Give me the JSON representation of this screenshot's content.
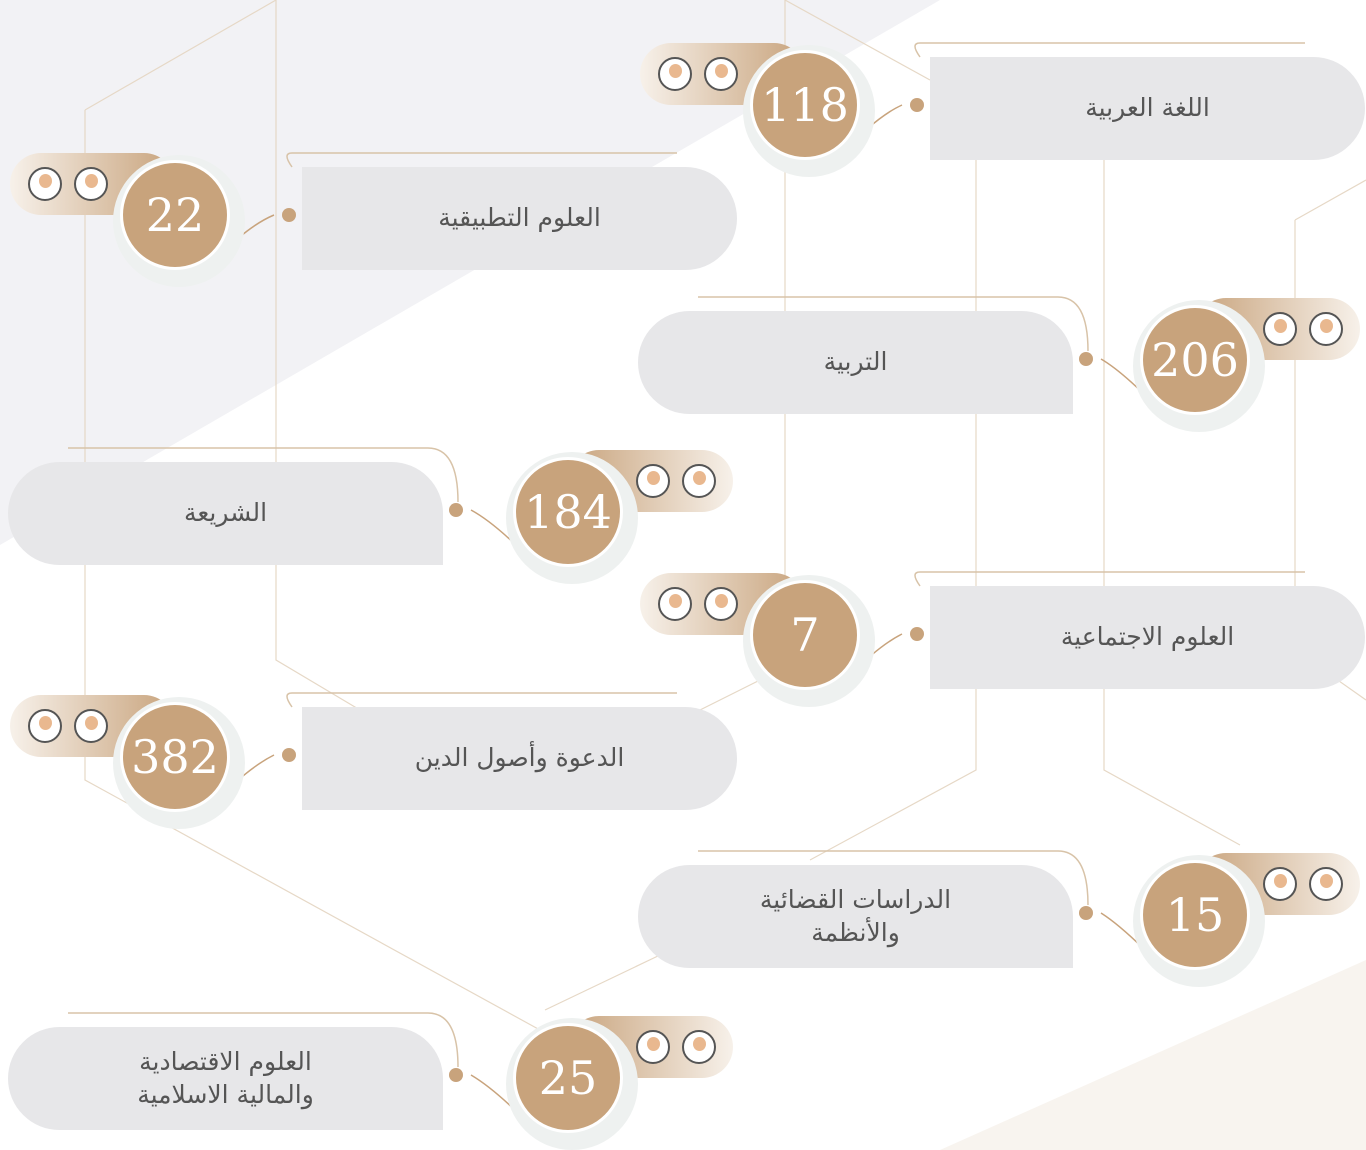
{
  "items": [
    {
      "label": "اللغة العربية",
      "count": 118
    },
    {
      "label": "العلوم التطبيقية",
      "count": 22
    },
    {
      "label": "التربية",
      "count": 206
    },
    {
      "label": "الشريعة",
      "count": 184
    },
    {
      "label": "العلوم الاجتماعية",
      "count": 7
    },
    {
      "label": "الدعوة وأصول الدين",
      "count": 382
    },
    {
      "label": "الدراسات القضائية والأنظمة",
      "count": 15
    },
    {
      "label": "العلوم الاقتصادية والمالية الاسلامية",
      "count": 25
    }
  ]
}
